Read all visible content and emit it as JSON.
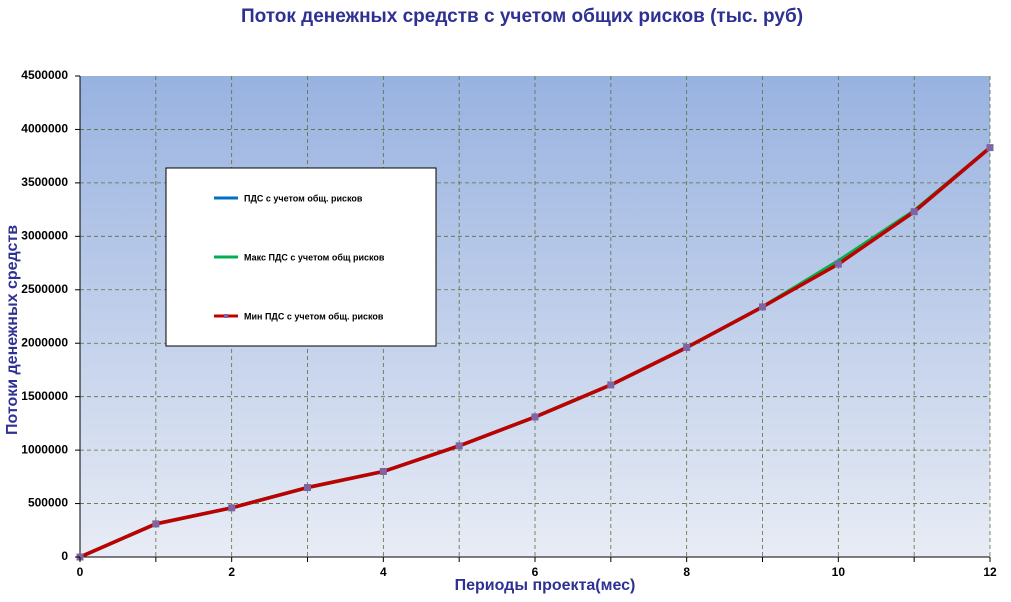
{
  "chart_data": {
    "type": "line",
    "title": "Поток денежных средств с учетом общих рисков (тыс. руб)",
    "x_label": "Периоды проекта(мес)",
    "y_label": "Потоки денежных средств",
    "x": [
      0,
      1,
      2,
      3,
      4,
      5,
      6,
      7,
      8,
      9,
      10,
      11,
      12
    ],
    "series": [
      {
        "name": "ПДС с учетом общ. рисков",
        "color": "#0070c0",
        "values": [
          0,
          310000,
          460000,
          650000,
          800000,
          1040000,
          1310000,
          1610000,
          1960000,
          2340000,
          2750000,
          3230000,
          3830000
        ]
      },
      {
        "name": "Макс ПДС с учетом общ рисков",
        "color": "#00b050",
        "values": [
          0,
          310000,
          460000,
          650000,
          800000,
          1040000,
          1310000,
          1610000,
          1960000,
          2340000,
          2770000,
          3240000,
          3830000
        ]
      },
      {
        "name": "Мин ПДС с учетом общ. рисков",
        "color": "#c00000",
        "marker_color": "#8064a2",
        "values": [
          0,
          310000,
          460000,
          650000,
          800000,
          1040000,
          1310000,
          1610000,
          1960000,
          2340000,
          2740000,
          3230000,
          3830000
        ]
      }
    ],
    "xlim": [
      0,
      12
    ],
    "xticks": [
      0,
      2,
      4,
      6,
      8,
      10,
      12
    ],
    "xminor": [
      1,
      3,
      5,
      7,
      9,
      11
    ],
    "ylim": [
      0,
      4500000
    ],
    "yticks": [
      0,
      500000,
      1000000,
      1500000,
      2000000,
      2500000,
      3000000,
      3500000,
      4000000,
      4500000
    ],
    "grid": true
  }
}
